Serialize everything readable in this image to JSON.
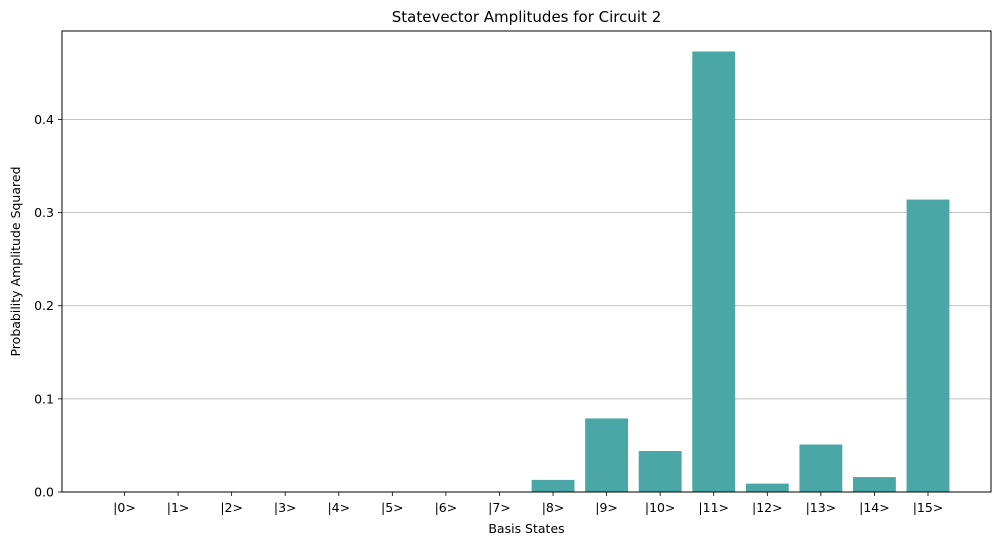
{
  "chart_data": {
    "type": "bar",
    "title": "Statevector Amplitudes for Circuit 2",
    "xlabel": "Basis States",
    "ylabel": "Probability Amplitude Squared",
    "categories": [
      "|0>",
      "|1>",
      "|2>",
      "|3>",
      "|4>",
      "|5>",
      "|6>",
      "|7>",
      "|8>",
      "|9>",
      "|10>",
      "|11>",
      "|12>",
      "|13>",
      "|14>",
      "|15>"
    ],
    "values": [
      0,
      0,
      0,
      0,
      0,
      0,
      0,
      0,
      0.013,
      0.079,
      0.044,
      0.473,
      0.009,
      0.051,
      0.016,
      0.314
    ],
    "ylim": [
      0,
      0.495
    ],
    "yticks": [
      0.0,
      0.1,
      0.2,
      0.3,
      0.4
    ],
    "ytick_labels": [
      "0.0",
      "0.1",
      "0.2",
      "0.3",
      "0.4"
    ],
    "grid": "y",
    "bar_color": "#4ba6a6"
  }
}
